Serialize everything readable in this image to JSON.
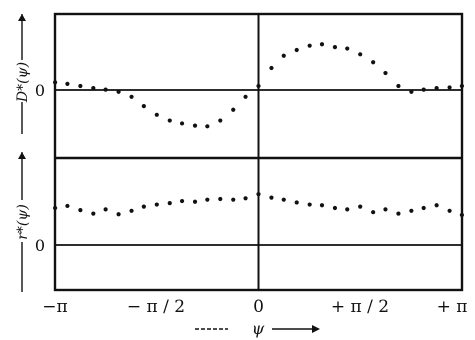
{
  "chart_data": [
    {
      "type": "scatter",
      "panel": "top",
      "ylabel": "D*(ψ)",
      "zero_label": "0",
      "xlim": [
        -3.1416,
        3.1416
      ],
      "ylim": [
        -1.0,
        1.0
      ],
      "points": {
        "x": [
          -3.14,
          -2.95,
          -2.75,
          -2.55,
          -2.36,
          -2.16,
          -1.96,
          -1.77,
          -1.57,
          -1.37,
          -1.18,
          -0.98,
          -0.79,
          -0.59,
          -0.39,
          -0.2,
          0.0,
          0.2,
          0.39,
          0.59,
          0.79,
          0.98,
          1.18,
          1.37,
          1.57,
          1.77,
          1.96,
          2.16,
          2.36,
          2.55,
          2.75,
          2.95,
          3.14
        ],
        "y": [
          0.05,
          0.03,
          0.0,
          -0.03,
          -0.05,
          -0.08,
          -0.15,
          -0.28,
          -0.4,
          -0.48,
          -0.52,
          -0.55,
          -0.56,
          -0.48,
          -0.33,
          -0.15,
          0.0,
          0.25,
          0.42,
          0.5,
          0.56,
          0.58,
          0.54,
          0.52,
          0.44,
          0.33,
          0.18,
          0.0,
          -0.08,
          -0.05,
          -0.03,
          -0.02,
          0.0
        ]
      }
    },
    {
      "type": "scatter",
      "panel": "bottom",
      "ylabel": "r*(ψ)",
      "zero_label": "0",
      "xlim": [
        -3.1416,
        3.1416
      ],
      "ylim": [
        -0.3,
        1.6
      ],
      "points": {
        "x": [
          -3.14,
          -2.95,
          -2.75,
          -2.55,
          -2.36,
          -2.16,
          -1.96,
          -1.77,
          -1.57,
          -1.37,
          -1.18,
          -0.98,
          -0.79,
          -0.59,
          -0.39,
          -0.2,
          0.0,
          0.2,
          0.39,
          0.59,
          0.79,
          0.98,
          1.18,
          1.37,
          1.57,
          1.77,
          1.96,
          2.16,
          2.36,
          2.55,
          2.75,
          2.95,
          3.14
        ],
        "y": [
          0.88,
          0.91,
          0.85,
          0.8,
          0.86,
          0.79,
          0.84,
          0.9,
          0.93,
          0.95,
          0.98,
          0.97,
          1.0,
          1.01,
          1.0,
          1.02,
          1.08,
          1.03,
          1.0,
          0.96,
          0.93,
          0.92,
          0.88,
          0.86,
          0.9,
          0.82,
          0.86,
          0.8,
          0.84,
          0.88,
          0.92,
          0.84,
          0.78
        ]
      }
    }
  ],
  "x_axis": {
    "label": "ψ",
    "ticks": [
      {
        "value": -3.1416,
        "label": "−π"
      },
      {
        "value": -1.5708,
        "label": "− π / 2"
      },
      {
        "value": 0,
        "label": "0"
      },
      {
        "value": 1.5708,
        "label": "+ π / 2"
      },
      {
        "value": 3.1416,
        "label": "+ π"
      }
    ]
  }
}
